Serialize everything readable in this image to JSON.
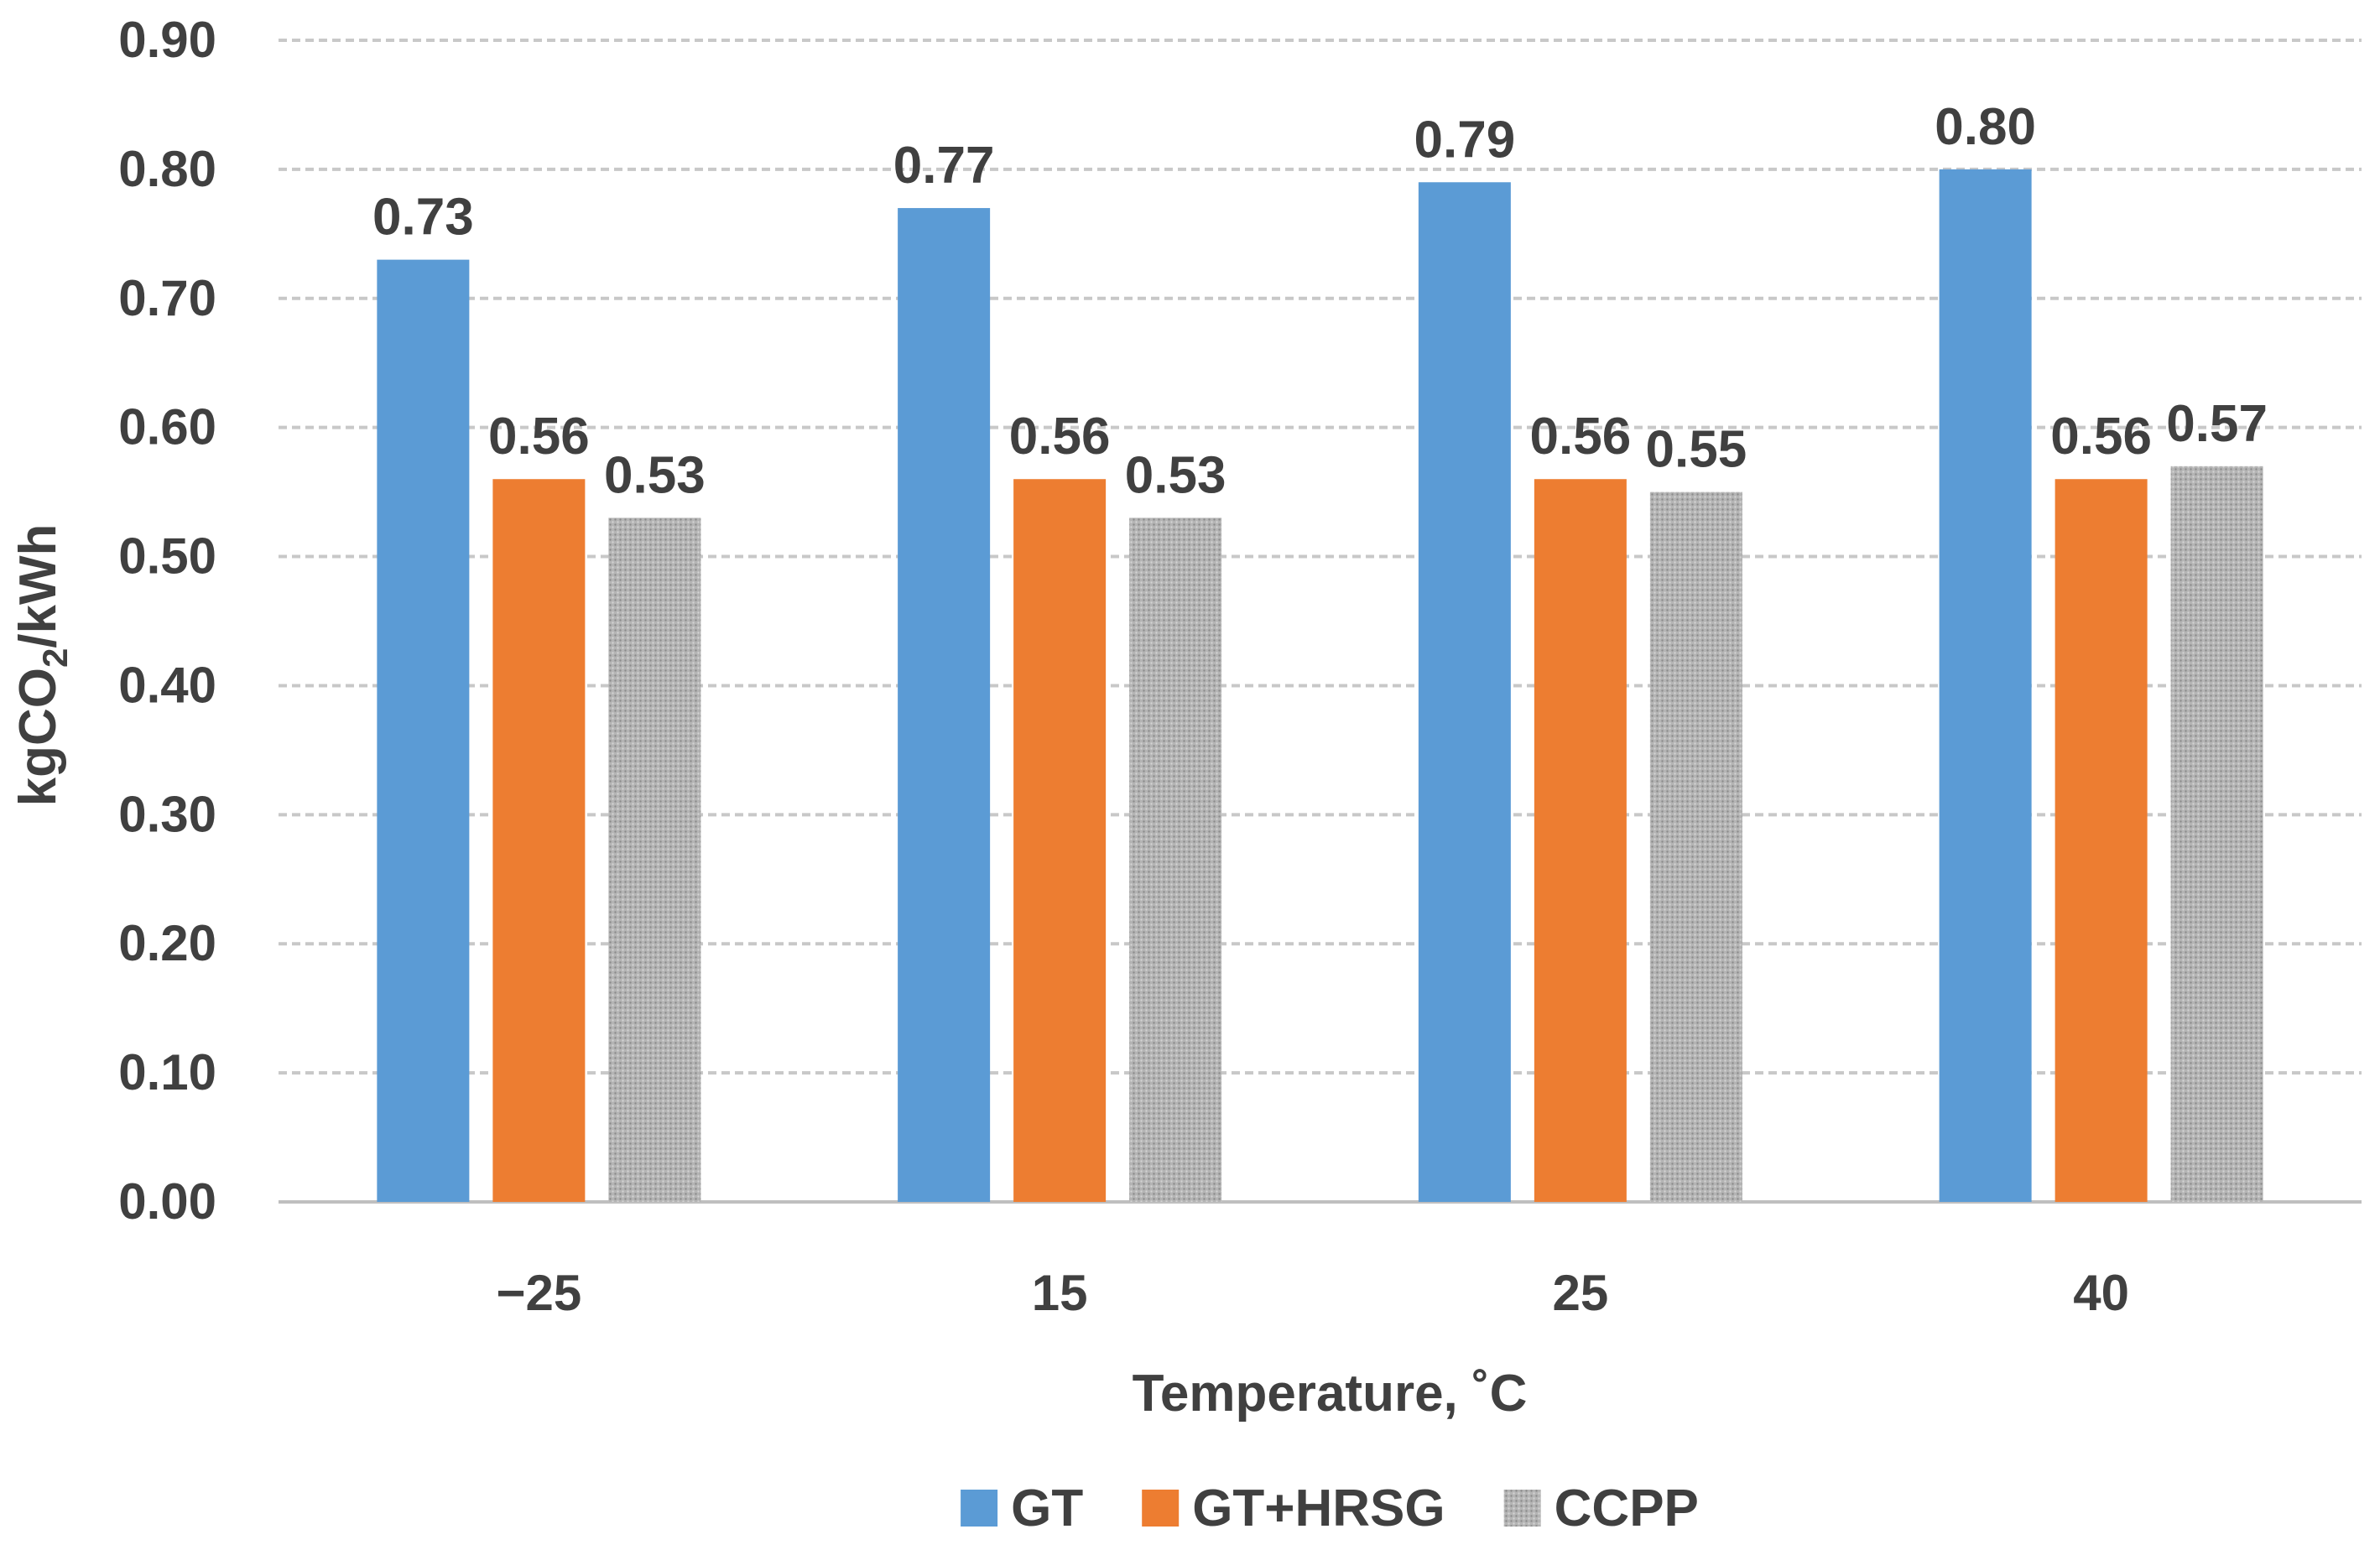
{
  "chart_data": {
    "type": "bar",
    "title": "",
    "xlabel": "Temperature, ˚C",
    "ylabel_main": "kgCO",
    "ylabel_sub": "2",
    "ylabel_tail": "/kWh",
    "categories": [
      "−25",
      "15",
      "25",
      "40"
    ],
    "ylim": [
      0,
      0.9
    ],
    "y_ticks": [
      0,
      0.1,
      0.2,
      0.3,
      0.4,
      0.5,
      0.6,
      0.7,
      0.8,
      0.9
    ],
    "y_tick_labels": [
      "0.00",
      "0.10",
      "0.20",
      "0.30",
      "0.40",
      "0.50",
      "0.60",
      "0.70",
      "0.80",
      "0.90"
    ],
    "grid": true,
    "legend_position": "bottom",
    "series": [
      {
        "name": "GT",
        "color": "#5b9bd5",
        "pattern": "solid",
        "values": [
          0.73,
          0.77,
          0.79,
          0.8
        ],
        "labels": [
          "0.73",
          "0.77",
          "0.79",
          "0.80"
        ]
      },
      {
        "name": "GT+HRSG",
        "color": "#ed7d31",
        "pattern": "solid",
        "values": [
          0.56,
          0.56,
          0.56,
          0.56
        ],
        "labels": [
          "0.56",
          "0.56",
          "0.56",
          "0.56"
        ]
      },
      {
        "name": "CCPP",
        "color": "#a5a5a5",
        "pattern": "dotted",
        "values": [
          0.53,
          0.53,
          0.55,
          0.57
        ],
        "labels": [
          "0.53",
          "0.53",
          "0.55",
          "0.57"
        ]
      }
    ]
  }
}
